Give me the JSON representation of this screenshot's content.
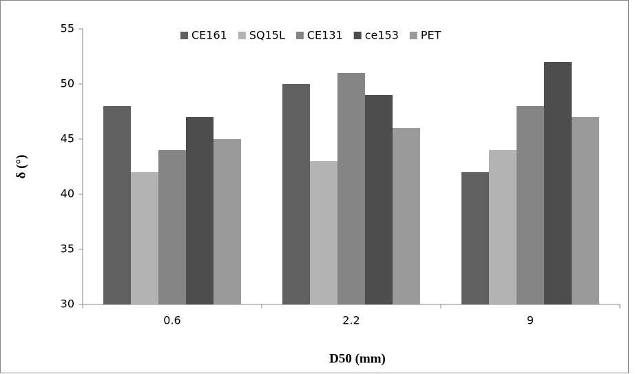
{
  "chart_data": {
    "type": "bar",
    "categories": [
      "0.6",
      "2.2",
      "9"
    ],
    "series": [
      {
        "name": "CE161",
        "color": "#606060",
        "values": [
          48,
          50,
          42
        ]
      },
      {
        "name": "SQ15L",
        "color": "#b3b3b3",
        "values": [
          42,
          43,
          44
        ]
      },
      {
        "name": "CE131",
        "color": "#858585",
        "values": [
          44,
          51,
          48
        ]
      },
      {
        "name": "ce153",
        "color": "#4d4d4d",
        "values": [
          47,
          49,
          52
        ]
      },
      {
        "name": "PET",
        "color": "#9a9a9a",
        "values": [
          45,
          46,
          47
        ]
      }
    ],
    "ylim": [
      30,
      55
    ],
    "yticks": [
      30,
      35,
      40,
      45,
      50,
      55
    ],
    "y_label": "δ (°)",
    "x_label": "D50 (mm)",
    "legend": "top",
    "grid": false
  }
}
